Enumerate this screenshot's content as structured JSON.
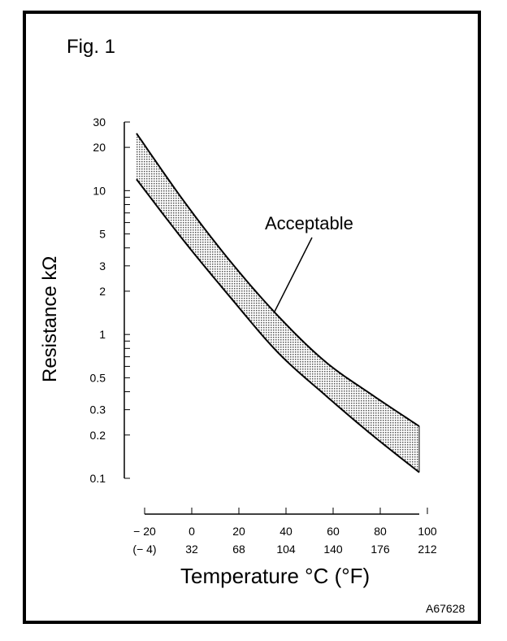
{
  "figure": {
    "title": "Fig. 1",
    "id": "A67628"
  },
  "chart_data": {
    "type": "area",
    "xlabel": "Temperature °C (°F)",
    "ylabel": "Resistance kΩ",
    "y_scale": "log",
    "ylim": [
      0.1,
      30
    ],
    "xlim": [
      -20,
      100
    ],
    "y_ticks": [
      "30",
      "20",
      "10",
      "5",
      "3",
      "2",
      "1",
      "0.5",
      "0.3",
      "0.2",
      "0.1"
    ],
    "y_tick_values": [
      30,
      20,
      10,
      5,
      3,
      2,
      1,
      0.5,
      0.3,
      0.2,
      0.1
    ],
    "x_ticks_c": [
      "− 20",
      "0",
      "20",
      "40",
      "60",
      "80",
      "100"
    ],
    "x_ticks_f": [
      "(− 4)",
      "32",
      "68",
      "104",
      "140",
      "176",
      "212"
    ],
    "x_tick_values": [
      -20,
      0,
      20,
      40,
      60,
      80,
      100
    ],
    "annotation": "Acceptable",
    "series": [
      {
        "x": [
          -20,
          0,
          20,
          40,
          60,
          80,
          100
        ],
        "values": [
          25,
          8.5,
          3.2,
          1.35,
          0.65,
          0.38,
          0.23
        ]
      },
      {
        "x": [
          -20,
          0,
          20,
          40,
          60,
          80,
          100
        ],
        "values": [
          12,
          4.5,
          1.8,
          0.75,
          0.38,
          0.2,
          0.11
        ]
      }
    ],
    "grid": false,
    "band_fill": "#b8b8b8"
  }
}
